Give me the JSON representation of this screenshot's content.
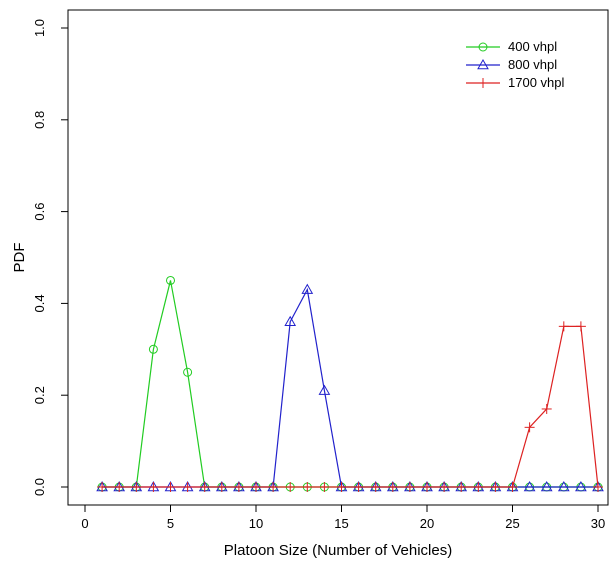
{
  "chart_data": {
    "type": "line",
    "title": "",
    "xlabel": "Platoon Size (Number of Vehicles)",
    "ylabel": "PDF",
    "xlim": [
      0,
      30
    ],
    "ylim": [
      0,
      1.0
    ],
    "xticks": [
      0,
      5,
      10,
      15,
      20,
      25,
      30
    ],
    "yticks": [
      0.0,
      0.2,
      0.4,
      0.6,
      0.8,
      1.0
    ],
    "xtick_labels": [
      "0",
      "5",
      "10",
      "15",
      "20",
      "25",
      "30"
    ],
    "ytick_labels": [
      "0.0",
      "0.2",
      "0.4",
      "0.6",
      "0.8",
      "1.0"
    ],
    "grid": false,
    "legend_position": "top-right",
    "x": [
      1,
      2,
      3,
      4,
      5,
      6,
      7,
      8,
      9,
      10,
      11,
      12,
      13,
      14,
      15,
      16,
      17,
      18,
      19,
      20,
      21,
      22,
      23,
      24,
      25,
      26,
      27,
      28,
      29,
      30
    ],
    "series": [
      {
        "name": "400 vhpl",
        "color": "#22cc22",
        "marker": "circle",
        "values": [
          0,
          0,
          0,
          0.3,
          0.45,
          0.25,
          0,
          0,
          0,
          0,
          0,
          0,
          0,
          0,
          0,
          0,
          0,
          0,
          0,
          0,
          0,
          0,
          0,
          0,
          0,
          0,
          0,
          0,
          0,
          0
        ]
      },
      {
        "name": "800 vhpl",
        "color": "#2222cc",
        "marker": "triangle",
        "values": [
          0,
          0,
          0,
          0,
          0,
          0,
          0,
          0,
          0,
          0,
          0,
          0.36,
          0.43,
          0.21,
          0,
          0,
          0,
          0,
          0,
          0,
          0,
          0,
          0,
          0,
          0,
          0,
          0,
          0,
          0,
          0
        ]
      },
      {
        "name": "1700 vhpl",
        "color": "#dd2222",
        "marker": "plus",
        "values": [
          0,
          0,
          0,
          0,
          0,
          0,
          0,
          0,
          0,
          0,
          0,
          0,
          0,
          0,
          0,
          0,
          0,
          0,
          0,
          0,
          0,
          0,
          0,
          0,
          0,
          0.13,
          0.17,
          0.35,
          0.35,
          0
        ]
      }
    ]
  }
}
